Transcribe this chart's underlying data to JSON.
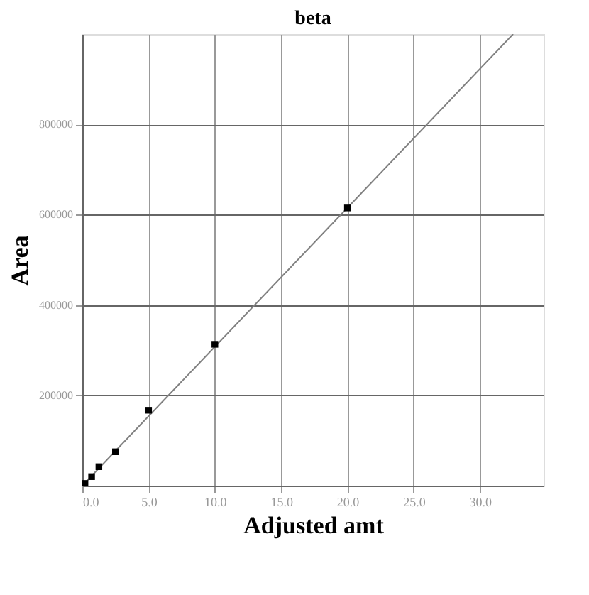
{
  "chart_data": {
    "type": "scatter",
    "title": "beta",
    "xlabel": "Adjusted amt",
    "ylabel": "Area",
    "grid": true,
    "xlim": [
      0,
      34.8
    ],
    "ylim": [
      0,
      1000000
    ],
    "xticks": [
      {
        "value": 0,
        "label": "0.0"
      },
      {
        "value": 5,
        "label": "5.0"
      },
      {
        "value": 10,
        "label": "10.0"
      },
      {
        "value": 15,
        "label": "15.0"
      },
      {
        "value": 20,
        "label": "20.0"
      },
      {
        "value": 25,
        "label": "25.0"
      },
      {
        "value": 30,
        "label": "30.0"
      }
    ],
    "yticks": [
      200000,
      400000,
      600000,
      800000
    ],
    "series": [
      {
        "type": "line",
        "color": "#808080",
        "x": [
          0,
          32.5
        ],
        "values": [
          0,
          1000000
        ]
      },
      {
        "color": "#000000",
        "marker": "square",
        "x": [
          0.2,
          0.7,
          1.25,
          2.5,
          5,
          10,
          20
        ],
        "values": [
          5000,
          20000,
          42000,
          75000,
          167000,
          313000,
          615000
        ]
      }
    ]
  }
}
